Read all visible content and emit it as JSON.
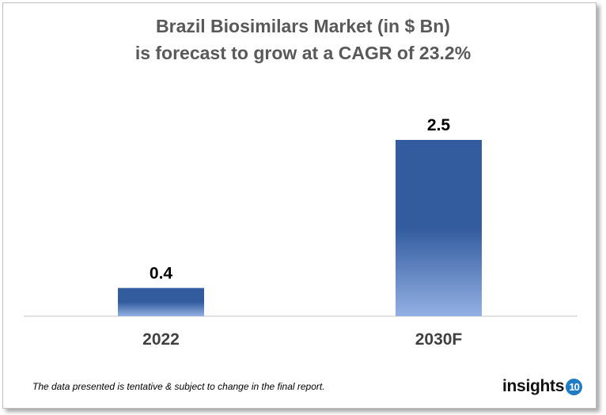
{
  "chart_data": {
    "type": "bar",
    "title": "Brazil Biosimilars Market (in $ Bn)",
    "subtitle": "is forecast to grow at a CAGR of 23.2%",
    "categories": [
      "2022",
      "2030F"
    ],
    "values": [
      0.4,
      2.5
    ],
    "data_labels": [
      "0.4",
      "2.5"
    ],
    "xlabel": "",
    "ylabel": "",
    "ylim": [
      0,
      2.5
    ],
    "grid": false,
    "legend": "none",
    "colors": {
      "bar_top": "#335c9f",
      "bar_bottom": "#93b0e3",
      "title": "#595959"
    }
  },
  "footer": {
    "note": "The data presented is tentative & subject to change in the final report."
  },
  "logo": {
    "text": "insights",
    "badge": "10",
    "badge_color": "#1f7bc4"
  }
}
